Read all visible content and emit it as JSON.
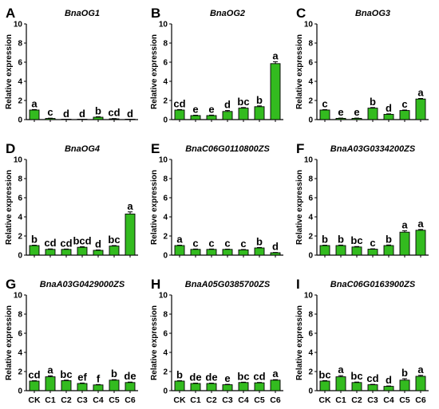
{
  "colors": {
    "bar": "#33bb1f",
    "bar_stroke": "#000000",
    "axis": "#000000"
  },
  "chart_data": [
    {
      "type": "bar",
      "panel": "A",
      "title": "BnaOG1",
      "ylabel": "Relative expression",
      "ylim": [
        0,
        10
      ],
      "yticks": [
        0,
        2,
        4,
        6,
        8,
        10
      ],
      "categories": [
        "CK",
        "C1",
        "C2",
        "C3",
        "C4",
        "C5",
        "C6"
      ],
      "show_xticks": false,
      "values": [
        1.0,
        0.12,
        0.0,
        0.0,
        0.25,
        0.08,
        0.0
      ],
      "errors": [
        0.05,
        0.03,
        0,
        0,
        0.05,
        0.03,
        0
      ],
      "labels": [
        "a",
        "c",
        "d",
        "d",
        "b",
        "cd",
        "d"
      ]
    },
    {
      "type": "bar",
      "panel": "B",
      "title": "BnaOG2",
      "ylabel": "Relative expression",
      "ylim": [
        0,
        10
      ],
      "yticks": [
        0,
        2,
        4,
        6,
        8,
        10
      ],
      "categories": [
        "CK",
        "C1",
        "C2",
        "C3",
        "C4",
        "C5",
        "C6"
      ],
      "show_xticks": false,
      "values": [
        1.0,
        0.42,
        0.42,
        0.85,
        1.2,
        1.35,
        5.85
      ],
      "errors": [
        0.05,
        0.04,
        0.05,
        0.1,
        0.06,
        0.08,
        0.2
      ],
      "labels": [
        "cd",
        "e",
        "e",
        "d",
        "bc",
        "b",
        "a"
      ]
    },
    {
      "type": "bar",
      "panel": "C",
      "title": "BnaOG3",
      "ylabel": "Relative expression",
      "ylim": [
        0,
        10
      ],
      "yticks": [
        0,
        2,
        4,
        6,
        8,
        10
      ],
      "categories": [
        "CK",
        "C1",
        "C2",
        "C3",
        "C4",
        "C5",
        "C6"
      ],
      "show_xticks": false,
      "values": [
        1.0,
        0.13,
        0.13,
        1.2,
        0.55,
        0.95,
        2.15
      ],
      "errors": [
        0.04,
        0.03,
        0.03,
        0.06,
        0.05,
        0.05,
        0.06
      ],
      "labels": [
        "c",
        "e",
        "e",
        "b",
        "d",
        "c",
        "a"
      ]
    },
    {
      "type": "bar",
      "panel": "D",
      "title": "BnaOG4",
      "ylabel": "Relative expression",
      "ylim": [
        0,
        10
      ],
      "yticks": [
        0,
        2,
        4,
        6,
        8,
        10
      ],
      "categories": [
        "CK",
        "C1",
        "C2",
        "C3",
        "C4",
        "C5",
        "C6"
      ],
      "show_xticks": false,
      "values": [
        1.0,
        0.6,
        0.6,
        0.82,
        0.5,
        0.95,
        4.3
      ],
      "errors": [
        0.04,
        0.05,
        0.04,
        0.06,
        0.04,
        0.05,
        0.22
      ],
      "labels": [
        "b",
        "cd",
        "cd",
        "bcd",
        "d",
        "bc",
        "a"
      ]
    },
    {
      "type": "bar",
      "panel": "E",
      "title": "BnaC06G0110800ZS",
      "ylabel": "Relative expression",
      "ylim": [
        0,
        10
      ],
      "yticks": [
        0,
        2,
        4,
        6,
        8,
        10
      ],
      "categories": [
        "CK",
        "C1",
        "C2",
        "C3",
        "C4",
        "C5",
        "C6"
      ],
      "show_xticks": false,
      "values": [
        1.0,
        0.6,
        0.6,
        0.6,
        0.55,
        0.75,
        0.25
      ],
      "errors": [
        0.04,
        0.04,
        0.04,
        0.03,
        0.04,
        0.05,
        0.03
      ],
      "labels": [
        "a",
        "c",
        "c",
        "c",
        "c",
        "b",
        "d"
      ]
    },
    {
      "type": "bar",
      "panel": "F",
      "title": "BnaA03G0334200ZS",
      "ylabel": "Relative expression",
      "ylim": [
        0,
        10
      ],
      "yticks": [
        0,
        2,
        4,
        6,
        8,
        10
      ],
      "categories": [
        "CK",
        "C1",
        "C2",
        "C3",
        "C4",
        "C5",
        "C6"
      ],
      "show_xticks": false,
      "values": [
        1.0,
        1.0,
        0.85,
        0.62,
        1.0,
        2.4,
        2.6
      ],
      "errors": [
        0.04,
        0.05,
        0.05,
        0.04,
        0.06,
        0.15,
        0.08
      ],
      "labels": [
        "b",
        "b",
        "bc",
        "c",
        "b",
        "a",
        "a"
      ]
    },
    {
      "type": "bar",
      "panel": "G",
      "title": "BnaA03G0429000ZS",
      "ylabel": "Relative expression",
      "ylim": [
        0,
        10
      ],
      "yticks": [
        0,
        2,
        4,
        6,
        8,
        10
      ],
      "categories": [
        "CK",
        "C1",
        "C2",
        "C3",
        "C4",
        "C5",
        "C6"
      ],
      "show_xticks": true,
      "values": [
        1.0,
        1.45,
        1.05,
        0.75,
        0.6,
        1.1,
        0.85
      ],
      "errors": [
        0.04,
        0.1,
        0.05,
        0.05,
        0.04,
        0.05,
        0.05
      ],
      "labels": [
        "cd",
        "a",
        "bc",
        "ef",
        "f",
        "b",
        "de"
      ]
    },
    {
      "type": "bar",
      "panel": "H",
      "title": "BnaA05G0385700ZS",
      "ylabel": "Relative expression",
      "ylim": [
        0,
        10
      ],
      "yticks": [
        0,
        2,
        4,
        6,
        8,
        10
      ],
      "categories": [
        "CK",
        "C1",
        "C2",
        "C3",
        "C4",
        "C5",
        "C6"
      ],
      "show_xticks": true,
      "values": [
        1.0,
        0.75,
        0.75,
        0.62,
        0.85,
        0.82,
        1.1
      ],
      "errors": [
        0.04,
        0.04,
        0.04,
        0.04,
        0.04,
        0.04,
        0.05
      ],
      "labels": [
        "b",
        "de",
        "de",
        "e",
        "bc",
        "cd",
        "a"
      ]
    },
    {
      "type": "bar",
      "panel": "I",
      "title": "BnaC06G0163900ZS",
      "ylabel": "Relative expression",
      "ylim": [
        0,
        10
      ],
      "yticks": [
        0,
        2,
        4,
        6,
        8,
        10
      ],
      "categories": [
        "CK",
        "C1",
        "C2",
        "C3",
        "C4",
        "C5",
        "C6"
      ],
      "show_xticks": true,
      "values": [
        1.0,
        1.45,
        0.85,
        0.62,
        0.45,
        1.1,
        1.5
      ],
      "errors": [
        0.05,
        0.12,
        0.05,
        0.04,
        0.04,
        0.15,
        0.1
      ],
      "labels": [
        "bc",
        "a",
        "bc",
        "cd",
        "d",
        "b",
        "a"
      ]
    }
  ]
}
